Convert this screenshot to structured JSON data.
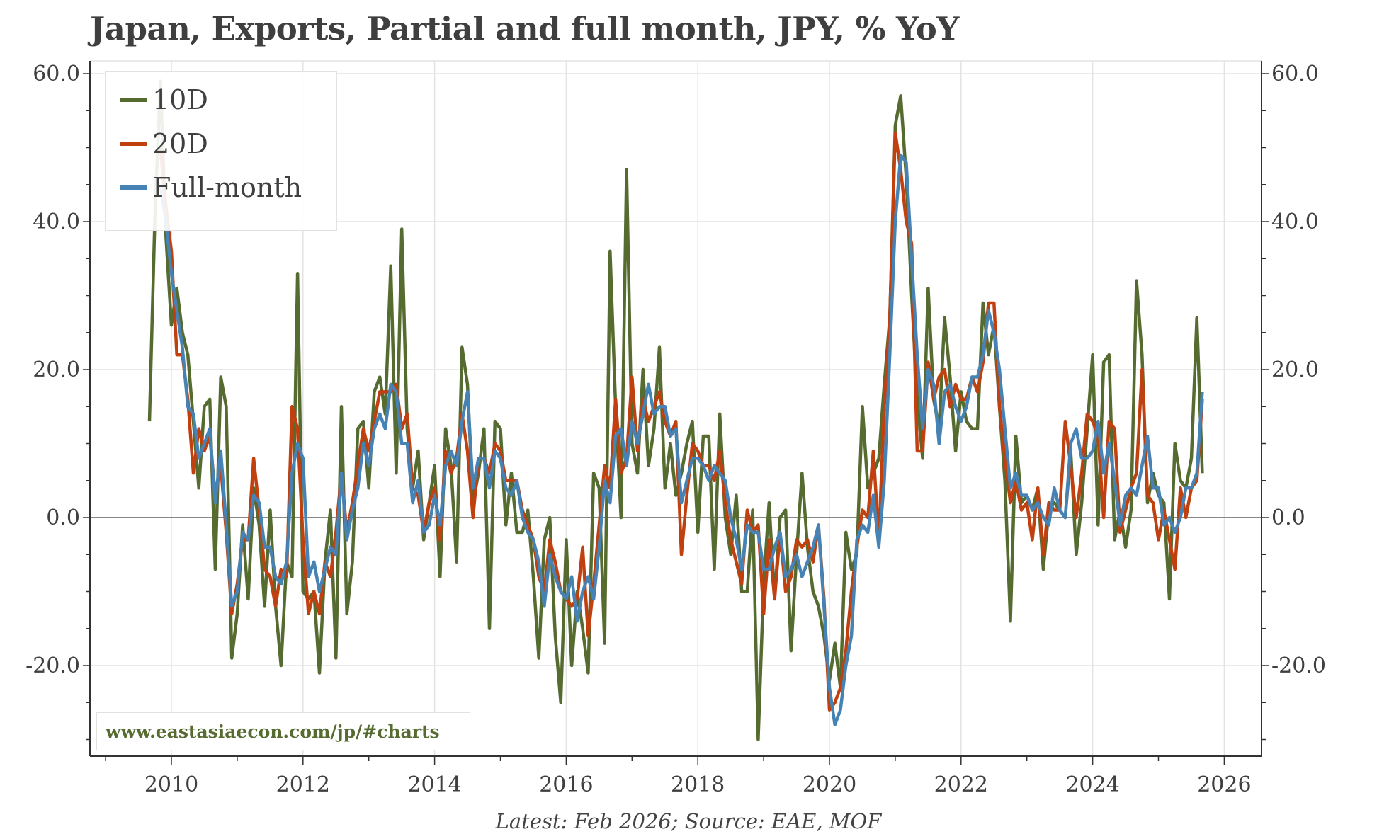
{
  "chart_data": {
    "type": "line",
    "title": "Japan, Exports, Partial and full month, JPY, % YoY",
    "footer": "Latest: Feb 2026; Source: EAE, MOF",
    "watermark": "www.eastasiaecon.com/jp/#charts",
    "xlabel": "",
    "ylabel": "",
    "xlim": [
      2008.75,
      2026.55
    ],
    "ylim": [
      -32,
      62
    ],
    "x_ticks": [
      "2010",
      "2012",
      "2014",
      "2016",
      "2018",
      "2020",
      "2022",
      "2024",
      "2026"
    ],
    "y_ticks": [
      "60.0",
      "40.0",
      "20.0",
      "0.0",
      "-20.0"
    ],
    "grid": true,
    "legend_position": "top-left",
    "series": [
      {
        "name": "10D",
        "color": "#556b2f",
        "start": "2009-09",
        "values": [
          13,
          41,
          59,
          38,
          26,
          31,
          25,
          22,
          13,
          4,
          15,
          16,
          -7,
          19,
          15,
          -19,
          -13,
          -1,
          -11,
          4,
          -1,
          -12,
          1,
          -12,
          -20,
          -6,
          -8,
          33,
          -10,
          -11,
          -10,
          -21,
          -6,
          1,
          -19,
          15,
          -13,
          -6,
          12,
          13,
          4,
          17,
          19,
          14,
          34,
          6,
          39,
          12,
          4,
          9,
          -3,
          2,
          7,
          -8,
          12,
          7,
          -6,
          23,
          18,
          2,
          6,
          12,
          -15,
          13,
          12,
          -1,
          6,
          -2,
          -2,
          1,
          -8,
          -19,
          -3,
          0,
          -16,
          -25,
          -3,
          -20,
          -10,
          -15,
          -21,
          6,
          4,
          -17,
          36,
          15,
          0,
          47,
          10,
          6,
          20,
          7,
          12,
          23,
          4,
          10,
          3,
          6,
          10,
          13,
          -2,
          11,
          11,
          -7,
          14,
          0,
          -5,
          3,
          -10,
          -10,
          1,
          -30,
          -9,
          2,
          -11,
          0,
          1,
          -18,
          -5,
          6,
          -4,
          -10,
          -12,
          -16,
          -22,
          -17,
          -23,
          -2,
          -7,
          -5,
          15,
          4,
          6,
          8,
          18,
          27,
          53,
          57,
          46,
          30,
          16,
          8,
          31,
          16,
          12,
          27,
          19,
          9,
          17,
          13,
          12,
          12,
          29,
          22,
          26,
          15,
          5,
          -14,
          11,
          2,
          3,
          1,
          4,
          -7,
          1,
          2,
          1,
          0,
          9,
          -5,
          2,
          12,
          22,
          -1,
          21,
          22,
          -3,
          1,
          -4,
          1,
          32,
          22,
          2,
          6,
          3,
          2,
          -11,
          10,
          5,
          4,
          8,
          27,
          6
        ]
      },
      {
        "name": "20D",
        "color": "#c0400f",
        "start": "2009-11",
        "values": [
          50,
          42,
          36,
          22,
          22,
          16,
          6,
          12,
          9,
          11,
          3,
          7,
          -2,
          -13,
          -9,
          -3,
          -3,
          8,
          1,
          -7,
          -8,
          -12,
          -7,
          -8,
          15,
          12,
          -3,
          -13,
          -10,
          -13,
          -6,
          -8,
          -2,
          6,
          -2,
          2,
          7,
          12,
          9,
          13,
          17,
          17,
          17,
          18,
          12,
          14,
          4,
          3,
          -2,
          2,
          4,
          -3,
          9,
          6,
          8,
          14,
          9,
          0,
          8,
          8,
          6,
          10,
          9,
          5,
          5,
          5,
          1,
          -1,
          -3,
          -8,
          -10,
          -3,
          -6,
          -10,
          -11,
          -12,
          -11,
          -4,
          -16,
          -9,
          -1,
          7,
          4,
          16,
          6,
          8,
          19,
          9,
          16,
          13,
          15,
          17,
          13,
          11,
          13,
          -5,
          3,
          10,
          9,
          7,
          7,
          5,
          9,
          2,
          -3,
          -6,
          -9,
          1,
          -2,
          -1,
          -13,
          -3,
          -11,
          -2,
          -10,
          -8,
          -3,
          -4,
          -3,
          -6,
          -1,
          -11,
          -26,
          -25,
          -23,
          -18,
          -10,
          -4,
          1,
          0,
          9,
          -3,
          15,
          27,
          52,
          47,
          40,
          37,
          9,
          9,
          21,
          16,
          19,
          20,
          15,
          18,
          16,
          16,
          19,
          17,
          21,
          29,
          29,
          15,
          8,
          2,
          5,
          1,
          2,
          -3,
          4,
          -5,
          2,
          1,
          1,
          13,
          7,
          0,
          6,
          14,
          13,
          11,
          0,
          13,
          12,
          -2,
          1,
          4,
          6,
          20,
          3,
          2,
          -3,
          1,
          -3,
          -7,
          4,
          0,
          4,
          5,
          16
        ]
      },
      {
        "name": "Full-month",
        "color": "#4682b4",
        "start": "2009-11",
        "values": [
          45,
          40,
          33,
          28,
          23,
          15,
          14,
          8,
          10,
          12,
          2,
          9,
          -1,
          -12,
          -10,
          -2,
          -3,
          3,
          2,
          -4,
          -4,
          -8,
          -9,
          -6,
          6,
          10,
          8,
          -8,
          -6,
          -10,
          -7,
          -4,
          -5,
          6,
          -3,
          1,
          4,
          10,
          7,
          12,
          14,
          12,
          18,
          17,
          10,
          10,
          2,
          5,
          -2,
          -1,
          3,
          -1,
          7,
          9,
          7,
          13,
          17,
          4,
          8,
          8,
          4,
          9,
          8,
          4,
          3,
          5,
          0,
          -2,
          -3,
          -6,
          -12,
          -5,
          -8,
          -10,
          -11,
          -8,
          -14,
          -10,
          -8,
          -11,
          -4,
          5,
          2,
          11,
          12,
          7,
          13,
          10,
          14,
          18,
          14,
          15,
          15,
          11,
          12,
          2,
          5,
          8,
          8,
          7,
          5,
          7,
          6,
          5,
          0,
          -3,
          -7,
          -1,
          -2,
          -2,
          -7,
          -7,
          -4,
          -2,
          -8,
          -7,
          -5,
          -8,
          -6,
          -4,
          -1,
          -12,
          -23,
          -28,
          -26,
          -20,
          -16,
          -3,
          -1,
          -2,
          3,
          -4,
          5,
          22,
          40,
          49,
          48,
          35,
          22,
          12,
          20,
          18,
          10,
          17,
          18,
          15,
          13,
          15,
          19,
          19,
          22,
          28,
          25,
          20,
          12,
          4,
          6,
          3,
          3,
          1,
          2,
          0,
          -1,
          4,
          1,
          0,
          10,
          12,
          8,
          8,
          9,
          13,
          6,
          10,
          5,
          -1,
          3,
          4,
          3,
          7,
          11,
          4,
          4,
          -1,
          0,
          -2,
          0,
          4,
          4,
          6,
          17
        ]
      }
    ]
  }
}
